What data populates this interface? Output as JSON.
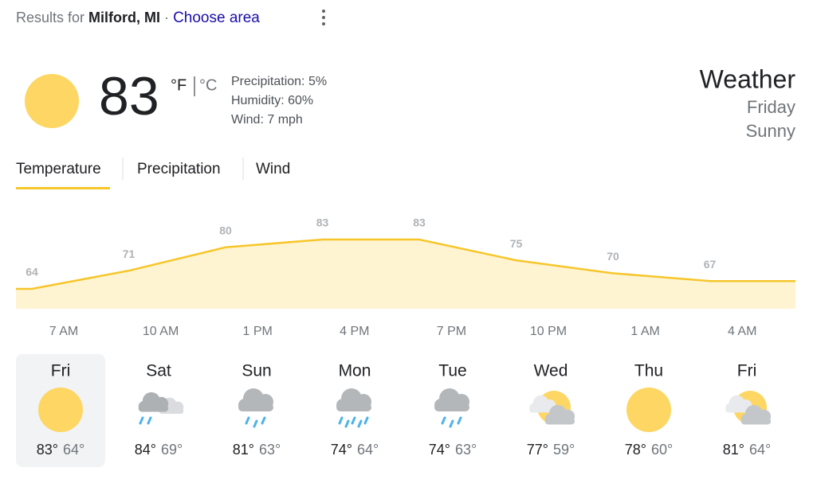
{
  "header": {
    "prefix": "Results for",
    "place": "Milford, MI",
    "separator": "·",
    "link": "Choose area"
  },
  "current": {
    "temperature": "83",
    "unit_f": "°F",
    "unit_c": "°C",
    "precipitation": "Precipitation: 5%",
    "humidity": "Humidity: 60%",
    "wind": "Wind: 7 mph",
    "title": "Weather",
    "day": "Friday",
    "condition": "Sunny"
  },
  "tabs": [
    "Temperature",
    "Precipitation",
    "Wind"
  ],
  "chart_data": {
    "type": "area",
    "categories": [
      "7 AM",
      "10 AM",
      "1 PM",
      "4 PM",
      "7 PM",
      "10 PM",
      "1 AM",
      "4 AM"
    ],
    "values": [
      64,
      71,
      80,
      83,
      83,
      75,
      70,
      67
    ],
    "color": "#f6c62b",
    "fill": "#fef4d2"
  },
  "daily": [
    {
      "day": "Fri",
      "high": "83°",
      "low": "64°"
    },
    {
      "day": "Sat",
      "high": "84°",
      "low": "69°"
    },
    {
      "day": "Sun",
      "high": "81°",
      "low": "63°"
    },
    {
      "day": "Mon",
      "high": "74°",
      "low": "64°"
    },
    {
      "day": "Tue",
      "high": "74°",
      "low": "63°"
    },
    {
      "day": "Wed",
      "high": "77°",
      "low": "59°"
    },
    {
      "day": "Thu",
      "high": "78°",
      "low": "60°"
    },
    {
      "day": "Fri",
      "high": "81°",
      "low": "64°"
    }
  ]
}
